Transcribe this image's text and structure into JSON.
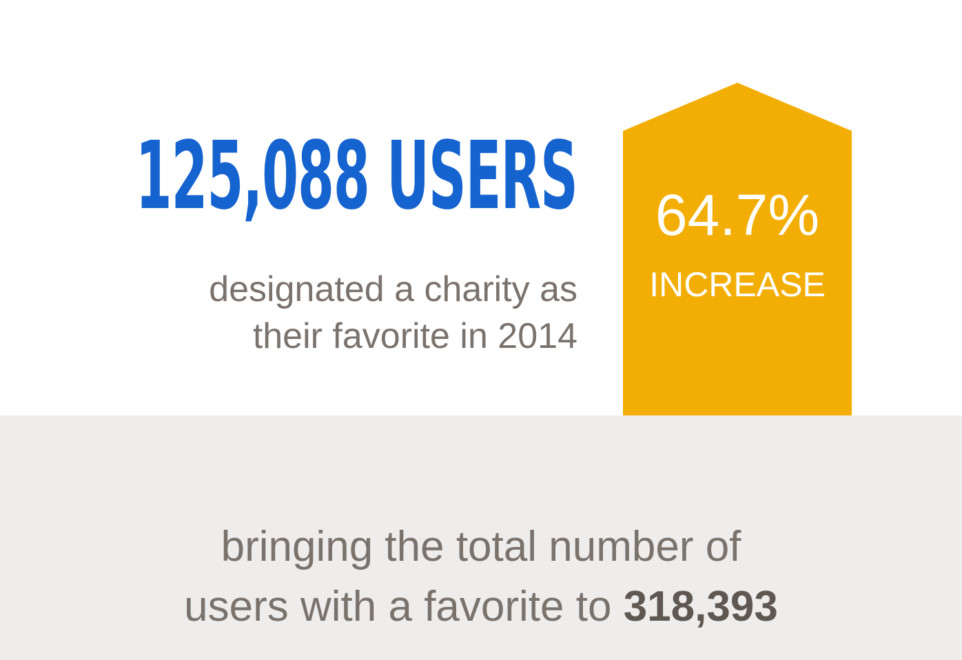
{
  "headline": {
    "count": "125,088",
    "unit": "USERS"
  },
  "subline": {
    "line1": "designated a charity as",
    "line2": "their favorite in 2014"
  },
  "badge": {
    "value": "64.7%",
    "label": "INCREASE"
  },
  "footer": {
    "line1": "bringing the total number of",
    "line2_prefix": "users with a favorite to",
    "total": "318,393"
  },
  "colors": {
    "headline": "#1563cf",
    "body_text": "#7a726c",
    "footer_total": "#5f5852",
    "badge_fill": "#f3ae05",
    "badge_text": "#ffffff",
    "bottom_panel": "#eeedeb"
  }
}
